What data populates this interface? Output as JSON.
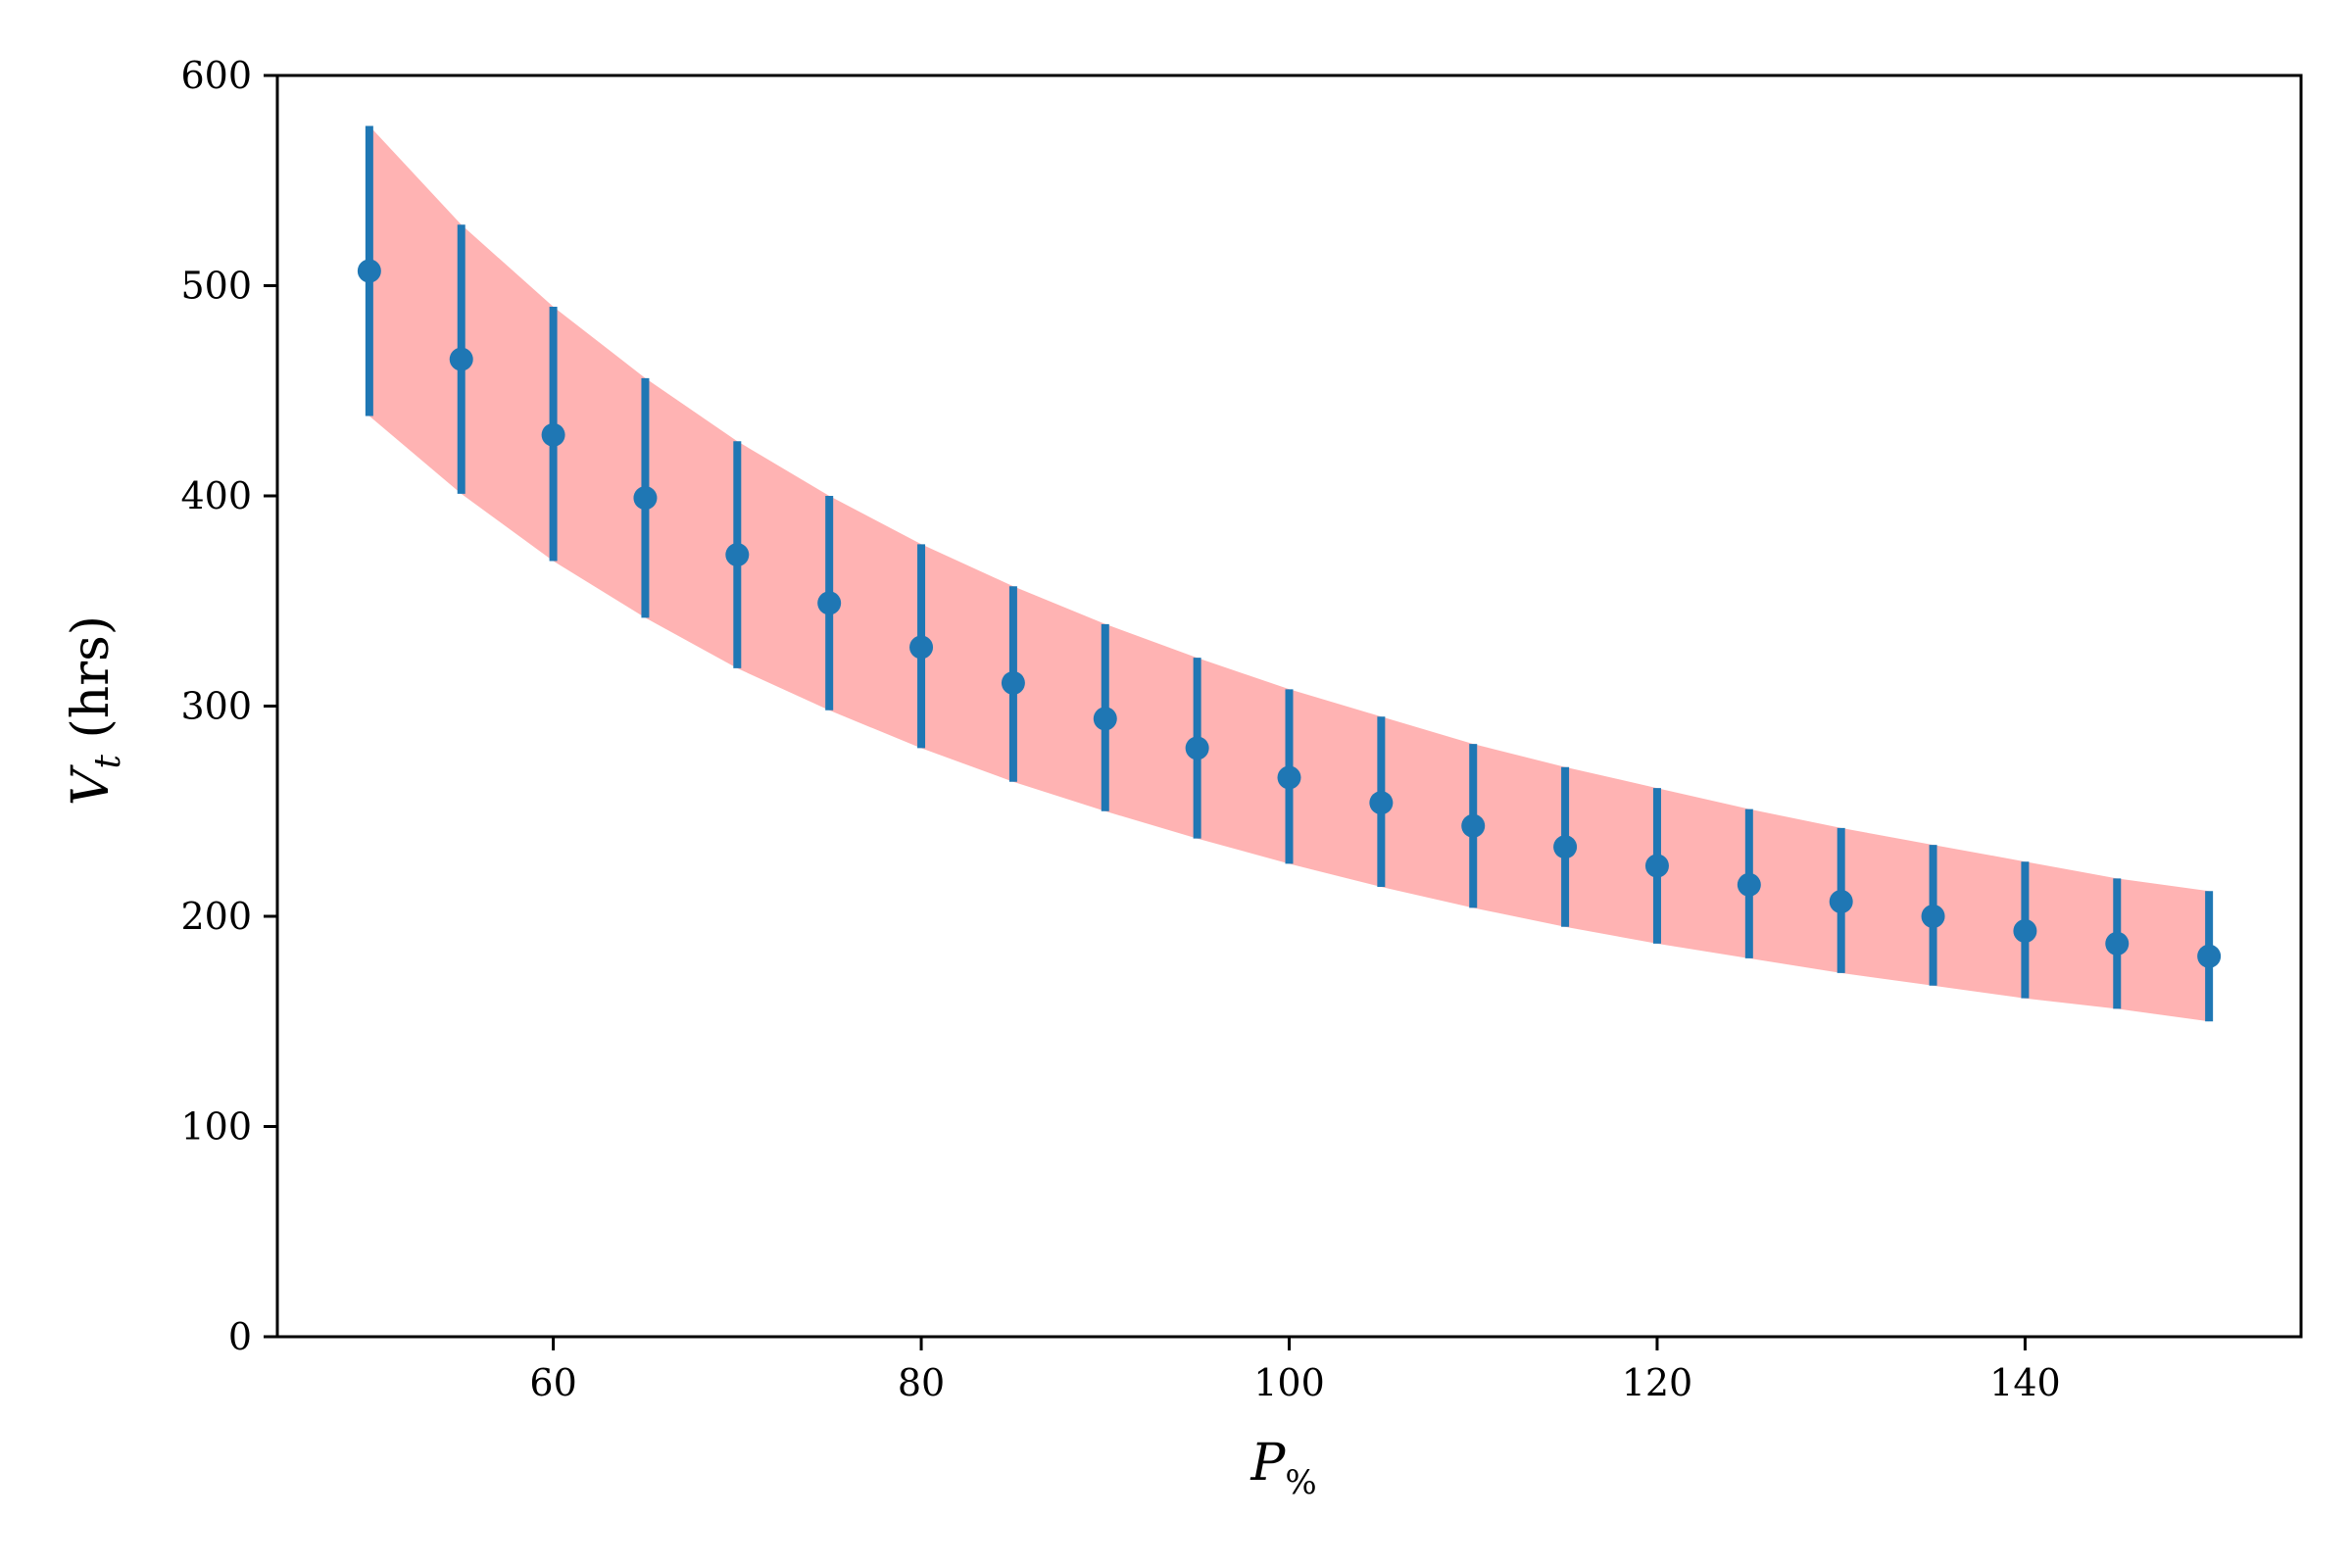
{
  "chart_data": {
    "type": "scatter",
    "title": "",
    "xlabel": {
      "main": "P",
      "sub": "%"
    },
    "ylabel": {
      "main": "V",
      "sub": "t",
      "rest": " (hrs)"
    },
    "xlim": [
      45,
      155
    ],
    "ylim": [
      0,
      600
    ],
    "x_ticks": [
      60,
      80,
      100,
      120,
      140
    ],
    "y_ticks": [
      0,
      100,
      200,
      300,
      400,
      500,
      600
    ],
    "grid": false,
    "legend": "none",
    "colors": {
      "marker": "#1f77b4",
      "band": "#ffb3b3"
    },
    "x": [
      50,
      55,
      60,
      65,
      70,
      75,
      80,
      85,
      90,
      95,
      100,
      105,
      110,
      115,
      120,
      125,
      130,
      135,
      140,
      145,
      150
    ],
    "y": [
      507,
      465,
      429,
      399,
      372,
      349,
      328,
      311,
      294,
      280,
      266,
      254,
      243,
      233,
      224,
      215,
      207,
      200,
      193,
      187,
      181
    ],
    "err_low": [
      438,
      401,
      369,
      342,
      318,
      298,
      280,
      264,
      250,
      237,
      225,
      214,
      204,
      195,
      187,
      180,
      173,
      167,
      161,
      156,
      150
    ],
    "err_high": [
      576,
      529,
      490,
      456,
      426,
      400,
      377,
      357,
      339,
      323,
      308,
      295,
      282,
      271,
      261,
      251,
      242,
      234,
      226,
      218,
      212
    ]
  }
}
